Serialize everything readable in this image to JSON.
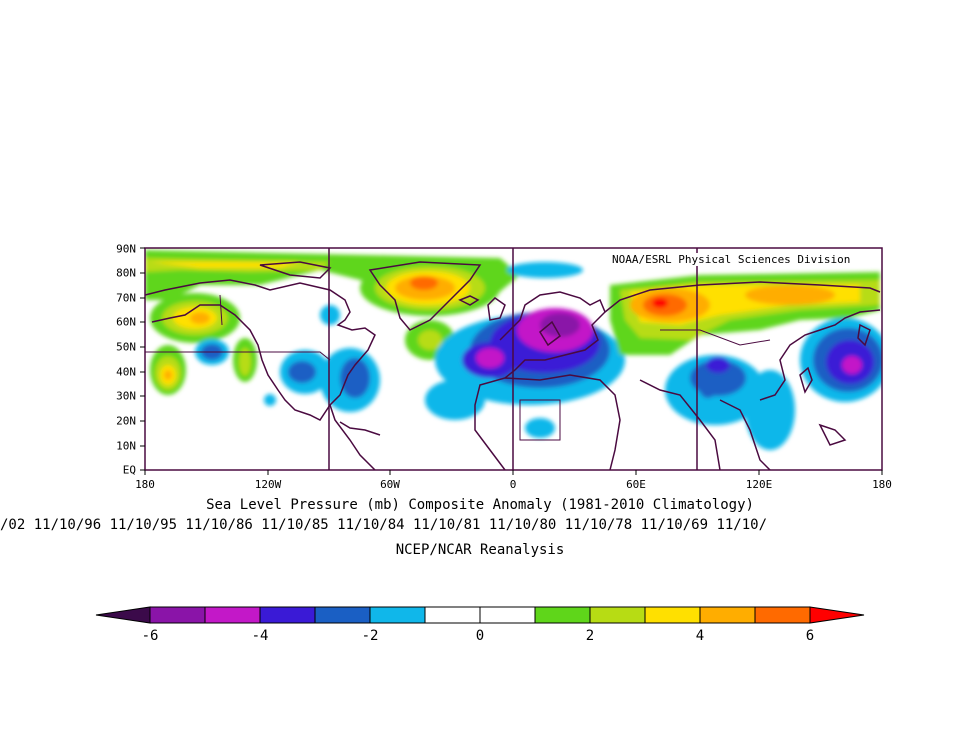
{
  "map": {
    "credit": "NOAA/ESRL Physical Sciences Division",
    "lat_labels": [
      "90N",
      "80N",
      "70N",
      "60N",
      "50N",
      "40N",
      "30N",
      "20N",
      "10N",
      "EQ"
    ],
    "lon_labels": [
      "180",
      "120W",
      "60W",
      "0",
      "60E",
      "120E",
      "180"
    ],
    "extent": {
      "lon": [
        -180,
        180
      ],
      "lat": [
        0,
        90
      ]
    },
    "projection": "cylindrical equidistant",
    "field": "sea level pressure composite anomaly",
    "anomaly_centers": [
      {
        "region": "Greenland",
        "lon": -45,
        "lat": 75,
        "value": 5
      },
      {
        "region": "Alaska / Gulf of Alaska",
        "lon": -150,
        "lat": 63,
        "value": 3
      },
      {
        "region": "North Pacific",
        "lon": -168,
        "lat": 40,
        "value": 3.5
      },
      {
        "region": "Western Siberia",
        "lon": 72,
        "lat": 68,
        "value": 6
      },
      {
        "region": "Eastern Siberia",
        "lon": 130,
        "lat": 70,
        "value": 4
      },
      {
        "region": "Europe",
        "lon": 20,
        "lat": 58,
        "value": -5.5
      },
      {
        "region": "NE Atlantic",
        "lon": -10,
        "lat": 48,
        "value": -4.5
      },
      {
        "region": "NW Pacific",
        "lon": 160,
        "lat": 45,
        "value": -5
      },
      {
        "region": "Central Asia",
        "lon": 80,
        "lat": 40,
        "value": -3
      },
      {
        "region": "NE Pacific",
        "lon": -140,
        "lat": 50,
        "value": -3.5
      },
      {
        "region": "Eastern United States",
        "lon": -80,
        "lat": 38,
        "value": -3
      }
    ]
  },
  "captions": {
    "line1": "Sea Level Pressure (mb) Composite Anomaly (1981-2010 Climatology)",
    "line2": "/02 11/10/96 11/10/95 11/10/86 11/10/85 11/10/84 11/10/81 11/10/80 11/10/78 11/10/69 11/10/",
    "line3": "NCEP/NCAR Reanalysis"
  },
  "colorbar": {
    "labels": [
      "-6",
      "-4",
      "-2",
      "0",
      "2",
      "4",
      "6"
    ],
    "bins": [
      -6,
      -5,
      -4,
      -3,
      -2,
      -1,
      0,
      1,
      2,
      3,
      4,
      5,
      6
    ],
    "colors": {
      "below_min": "#3b0a4a",
      "m6_m5": "#8a14a8",
      "m5_m4": "#c318c8",
      "m4_m3": "#3a1ad6",
      "m3_m2": "#1a5fc4",
      "m2_m1": "#10b7ea",
      "m1_0": "#ffffff",
      "0_1": "#ffffff",
      "1_2": "#5fd61a",
      "2_3": "#b7dc14",
      "3_4": "#ffe000",
      "4_5": "#ffad00",
      "5_6": "#ff6a00",
      "above_max": "#ff0000"
    },
    "coastline": "#4a0a40"
  }
}
